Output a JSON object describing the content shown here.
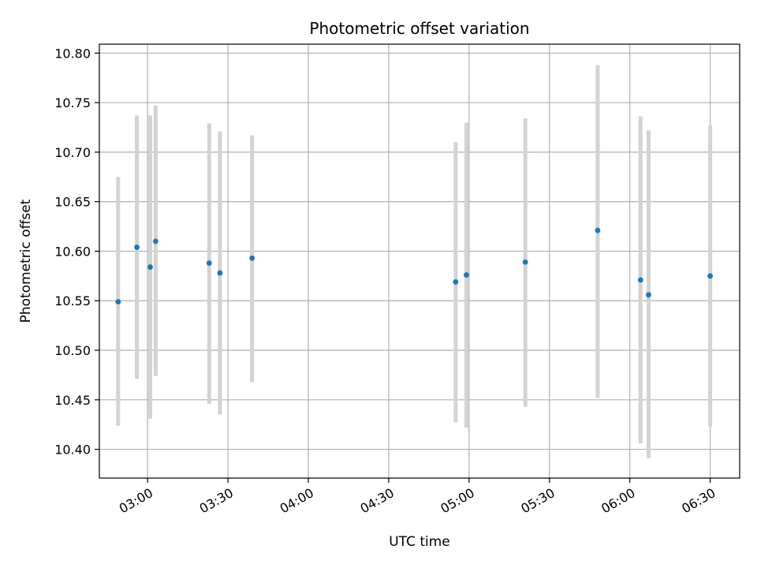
{
  "chart_data": {
    "type": "scatter",
    "title": "Photometric offset variation",
    "xlabel": "UTC time",
    "ylabel": "Photometric offset",
    "x_unit": "UTC time (HH:MM)",
    "xlim": [
      "02:42",
      "06:41"
    ],
    "ylim": [
      10.371,
      10.809
    ],
    "x_ticks": [
      "03:00",
      "03:30",
      "04:00",
      "04:30",
      "05:00",
      "05:30",
      "06:00",
      "06:30"
    ],
    "y_ticks": [
      "10.40",
      "10.45",
      "10.50",
      "10.55",
      "10.60",
      "10.65",
      "10.70",
      "10.75",
      "10.80"
    ],
    "grid": true,
    "point_color": "#1f77b4",
    "errorbar_color": "#d3d3d3",
    "points": [
      {
        "x": "02:49",
        "y": 10.549,
        "ylow": 10.424,
        "yhigh": 10.675
      },
      {
        "x": "02:56",
        "y": 10.604,
        "ylow": 10.471,
        "yhigh": 10.737
      },
      {
        "x": "03:01",
        "y": 10.584,
        "ylow": 10.431,
        "yhigh": 10.737
      },
      {
        "x": "03:03",
        "y": 10.61,
        "ylow": 10.474,
        "yhigh": 10.747
      },
      {
        "x": "03:23",
        "y": 10.588,
        "ylow": 10.446,
        "yhigh": 10.729
      },
      {
        "x": "03:27",
        "y": 10.578,
        "ylow": 10.435,
        "yhigh": 10.721
      },
      {
        "x": "03:39",
        "y": 10.593,
        "ylow": 10.468,
        "yhigh": 10.717
      },
      {
        "x": "04:55",
        "y": 10.569,
        "ylow": 10.427,
        "yhigh": 10.71
      },
      {
        "x": "04:59",
        "y": 10.576,
        "ylow": 10.422,
        "yhigh": 10.73
      },
      {
        "x": "05:21",
        "y": 10.589,
        "ylow": 10.443,
        "yhigh": 10.734
      },
      {
        "x": "05:48",
        "y": 10.621,
        "ylow": 10.452,
        "yhigh": 10.788
      },
      {
        "x": "06:04",
        "y": 10.571,
        "ylow": 10.406,
        "yhigh": 10.736
      },
      {
        "x": "06:07",
        "y": 10.556,
        "ylow": 10.391,
        "yhigh": 10.722
      },
      {
        "x": "06:30",
        "y": 10.575,
        "ylow": 10.423,
        "yhigh": 10.727
      }
    ]
  }
}
